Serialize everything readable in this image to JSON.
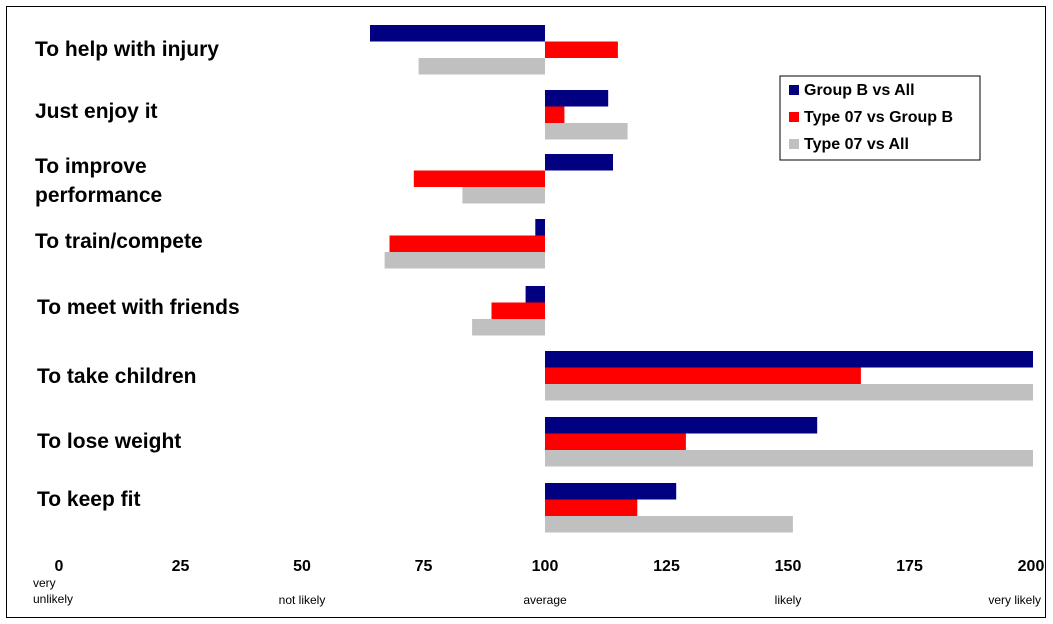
{
  "chart_data": {
    "type": "bar",
    "orientation": "horizontal",
    "baseline": 100,
    "xlim": [
      0,
      200
    ],
    "categories": [
      "To help with injury",
      "Just enjoy it",
      "To improve performance",
      "To train/compete",
      "To meet with friends",
      "To take children",
      "To lose weight",
      "To keep fit"
    ],
    "series": [
      {
        "name": "Group B vs All",
        "color": "#000080",
        "values": [
          64,
          113,
          114,
          98,
          96,
          203,
          156,
          127
        ]
      },
      {
        "name": "Type 07 vs Group B",
        "color": "#FF0000",
        "values": [
          115,
          104,
          73,
          68,
          89,
          165,
          129,
          119
        ]
      },
      {
        "name": "Type 07 vs All",
        "color": "#C0C0C0",
        "values": [
          74,
          117,
          83,
          67,
          85,
          210,
          202,
          151
        ]
      }
    ],
    "x_ticks": [
      0,
      25,
      50,
      75,
      100,
      125,
      150,
      175,
      200
    ],
    "scale_labels": [
      {
        "at": 0,
        "lines": [
          "very",
          "unlikely"
        ]
      },
      {
        "at": 50,
        "lines": [
          "not likely"
        ]
      },
      {
        "at": 100,
        "lines": [
          "average"
        ]
      },
      {
        "at": 150,
        "lines": [
          "likely"
        ]
      },
      {
        "at": 200,
        "lines": [
          "very likely"
        ]
      }
    ],
    "legend_position": "top-right",
    "grid": false
  }
}
